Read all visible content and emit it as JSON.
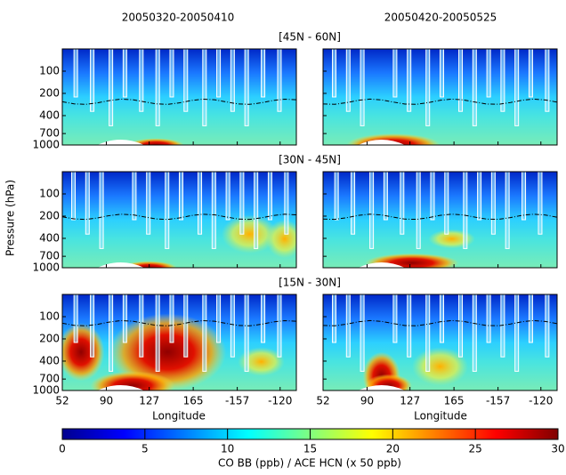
{
  "chart_data": {
    "type": "heatmap",
    "column_titles": [
      "20050320-20050410",
      "20050420-20050525"
    ],
    "row_titles": [
      "[45N - 60N]",
      "[30N - 45N]",
      "[15N - 30N]"
    ],
    "ylabel": "Pressure (hPa)",
    "xlabel": "Longitude",
    "log_y": true,
    "ylim": [
      1000,
      50
    ],
    "yticks": [
      100,
      200,
      400,
      700,
      1000
    ],
    "xlim": [
      52,
      254
    ],
    "xticks": [
      52,
      90,
      127,
      165,
      {
        "value": 203,
        "label": "-157"
      },
      {
        "value": 240,
        "label": "-120"
      }
    ],
    "colormap": "jet",
    "colorbar": {
      "label": "CO BB (ppb) / ACE HCN (x 50 ppb)",
      "lim": [
        0,
        30
      ],
      "ticks": [
        0,
        5,
        10,
        15,
        20,
        25,
        30
      ]
    }
  }
}
